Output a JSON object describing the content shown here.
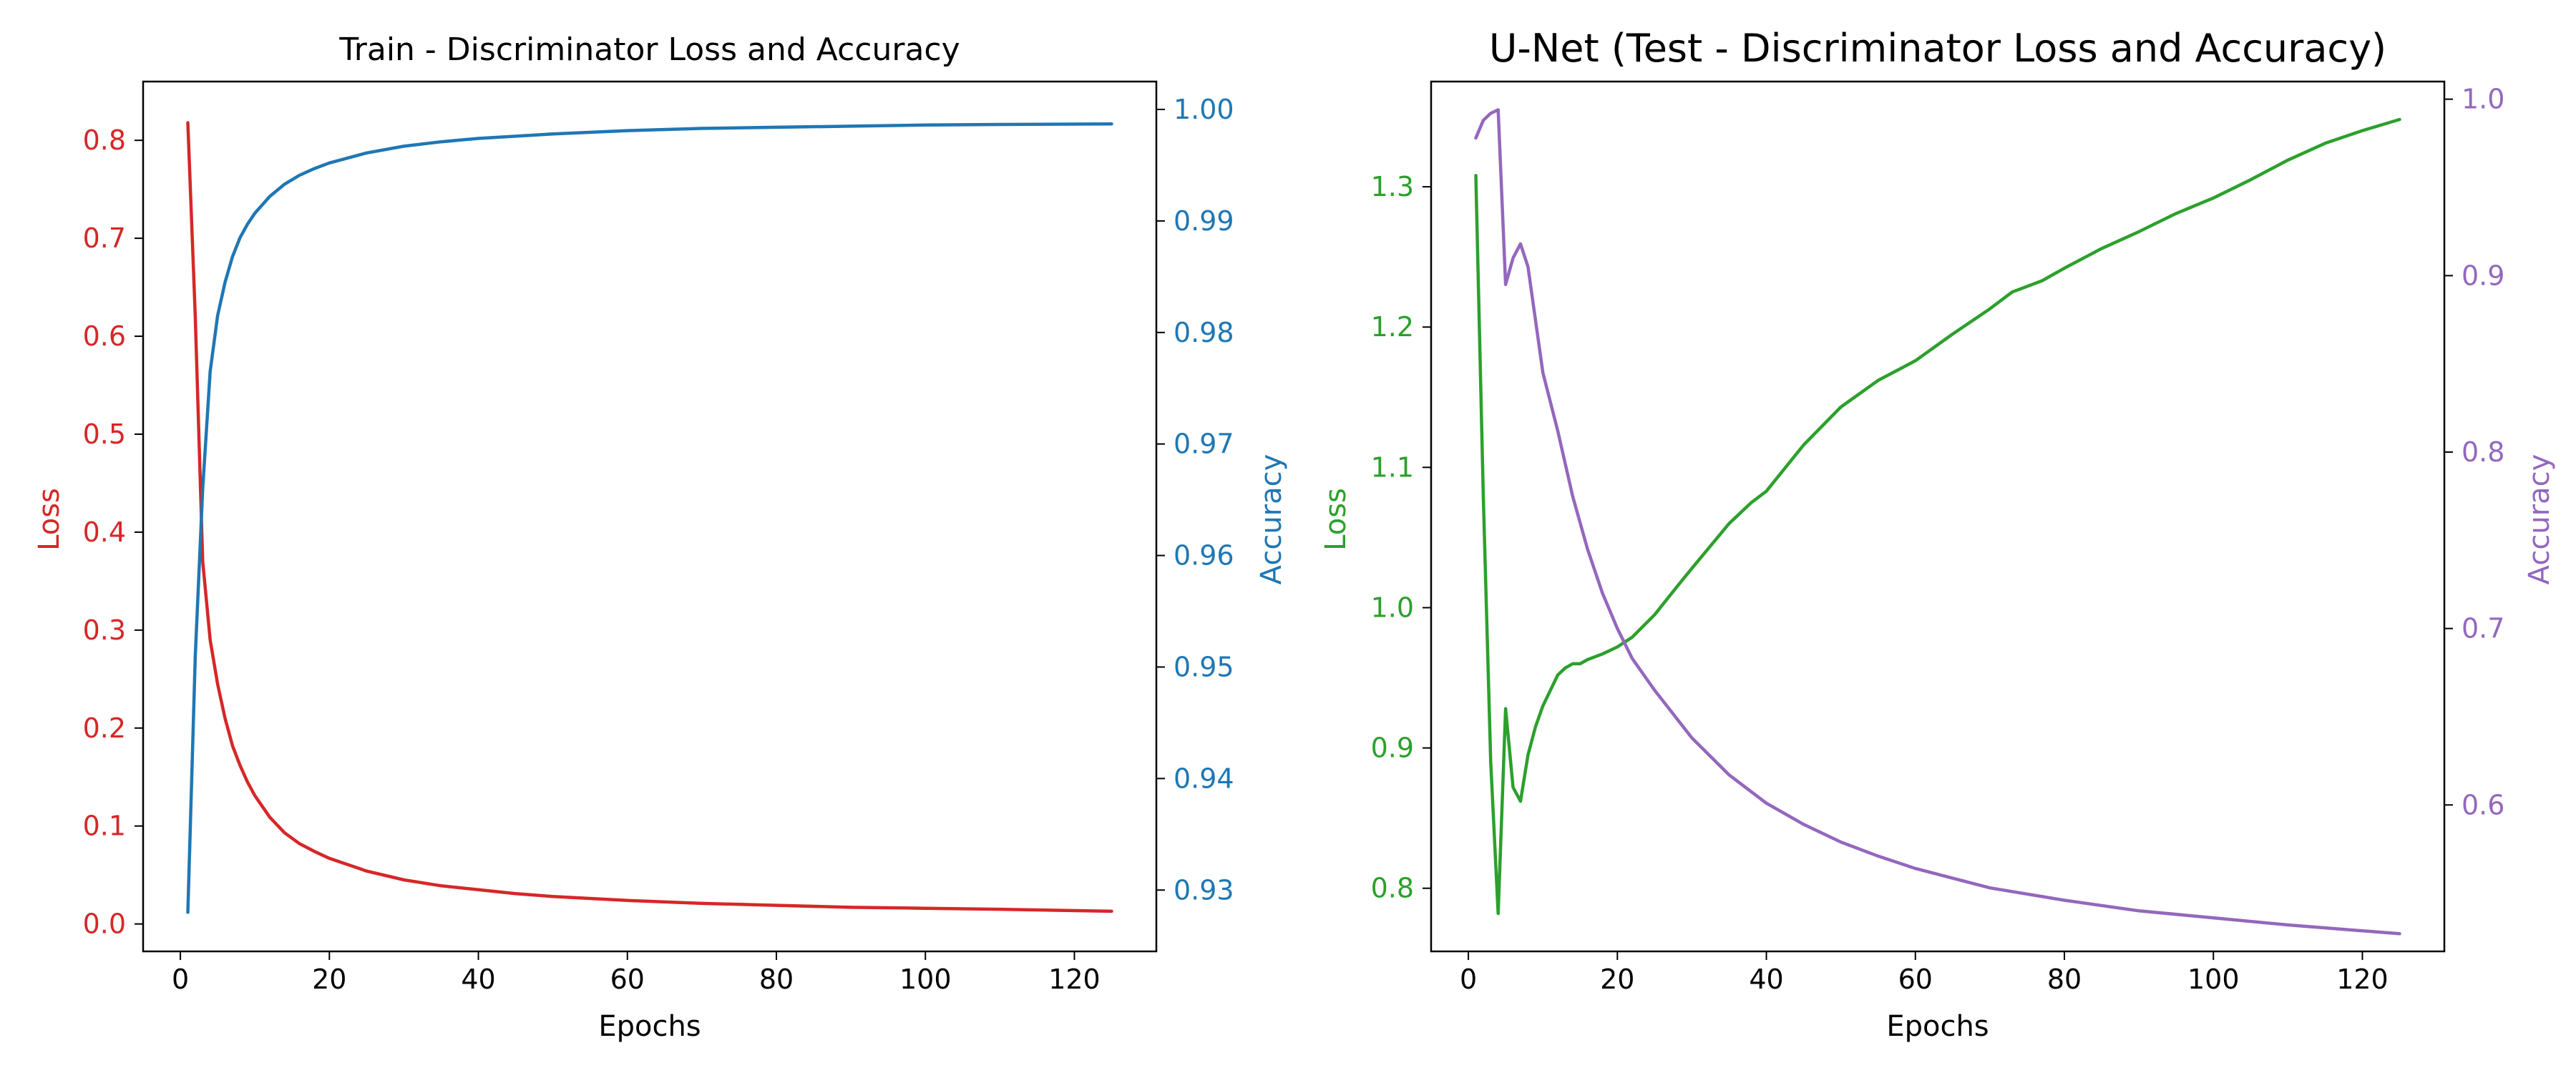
{
  "chart_data": [
    {
      "type": "line",
      "title": "Train - Discriminator Loss and Accuracy",
      "xlabel": "Epochs",
      "ylabel_left": "Loss",
      "ylabel_right": "Accuracy",
      "xlim": [
        -5,
        131
      ],
      "ylim_left": [
        -0.028,
        0.86
      ],
      "ylim_right": [
        0.9245,
        1.0025
      ],
      "xticks": [
        "0",
        "20",
        "40",
        "60",
        "80",
        "100",
        "120"
      ],
      "yticks_left": [
        "0.0",
        "0.1",
        "0.2",
        "0.3",
        "0.4",
        "0.5",
        "0.6",
        "0.7",
        "0.8"
      ],
      "yticks_right": [
        "0.93",
        "0.94",
        "0.95",
        "0.96",
        "0.97",
        "0.98",
        "0.99",
        "1.00"
      ],
      "left_color": "#d62728",
      "right_color": "#1f77b4",
      "grid": false,
      "series": [
        {
          "axis": "left",
          "color": "#d62728",
          "x": [
            1,
            2,
            3,
            4,
            5,
            6,
            7,
            8,
            9,
            10,
            12,
            14,
            16,
            18,
            20,
            25,
            30,
            35,
            40,
            45,
            50,
            60,
            70,
            80,
            90,
            100,
            110,
            125
          ],
          "y": [
            0.818,
            0.62,
            0.37,
            0.29,
            0.245,
            0.21,
            0.182,
            0.162,
            0.145,
            0.131,
            0.109,
            0.093,
            0.082,
            0.074,
            0.067,
            0.054,
            0.045,
            0.039,
            0.035,
            0.031,
            0.028,
            0.024,
            0.021,
            0.019,
            0.017,
            0.016,
            0.015,
            0.013
          ]
        },
        {
          "axis": "right",
          "color": "#1f77b4",
          "x": [
            1,
            2,
            3,
            4,
            5,
            6,
            7,
            8,
            9,
            10,
            12,
            14,
            16,
            18,
            20,
            25,
            30,
            35,
            40,
            50,
            60,
            70,
            80,
            90,
            100,
            110,
            125
          ],
          "y": [
            0.928,
            0.951,
            0.966,
            0.9765,
            0.9815,
            0.9845,
            0.9868,
            0.9885,
            0.9897,
            0.9907,
            0.9922,
            0.9933,
            0.9941,
            0.9947,
            0.9952,
            0.9961,
            0.9967,
            0.9971,
            0.9974,
            0.9978,
            0.9981,
            0.9983,
            0.9984,
            0.9985,
            0.9986,
            0.99865,
            0.9987
          ]
        }
      ]
    },
    {
      "type": "line",
      "title": "U-Net (Test - Discriminator Loss and Accuracy)",
      "xlabel": "Epochs",
      "ylabel_left": "Loss",
      "ylabel_right": "Accuracy",
      "xlim": [
        -5,
        131
      ],
      "ylim_left": [
        0.755,
        1.375
      ],
      "ylim_right": [
        0.517,
        1.01
      ],
      "xticks": [
        "0",
        "20",
        "40",
        "60",
        "80",
        "100",
        "120"
      ],
      "yticks_left": [
        "0.8",
        "0.9",
        "1.0",
        "1.1",
        "1.2",
        "1.3"
      ],
      "yticks_right": [
        "0.6",
        "0.7",
        "0.8",
        "0.9",
        "1.0"
      ],
      "left_color": "#2ca02c",
      "right_color": "#9467bd",
      "grid": false,
      "series": [
        {
          "axis": "left",
          "color": "#2ca02c",
          "x": [
            1,
            2,
            3,
            4,
            5,
            6,
            7,
            8,
            9,
            10,
            12,
            13,
            14,
            15,
            16,
            18,
            20,
            22,
            25,
            28,
            30,
            35,
            38,
            40,
            45,
            50,
            55,
            60,
            65,
            70,
            73,
            77,
            80,
            85,
            90,
            95,
            100,
            105,
            110,
            115,
            120,
            125
          ],
          "y": [
            1.308,
            1.08,
            0.89,
            0.782,
            0.928,
            0.872,
            0.862,
            0.895,
            0.915,
            0.93,
            0.952,
            0.957,
            0.96,
            0.96,
            0.963,
            0.967,
            0.972,
            0.979,
            0.995,
            1.015,
            1.028,
            1.06,
            1.075,
            1.083,
            1.116,
            1.143,
            1.162,
            1.176,
            1.195,
            1.213,
            1.225,
            1.233,
            1.242,
            1.256,
            1.268,
            1.281,
            1.292,
            1.305,
            1.319,
            1.331,
            1.34,
            1.348
          ]
        },
        {
          "axis": "right",
          "color": "#9467bd",
          "x": [
            1,
            2,
            3,
            4,
            5,
            6,
            7,
            8,
            9,
            10,
            12,
            14,
            16,
            18,
            20,
            22,
            25,
            30,
            35,
            40,
            45,
            50,
            55,
            60,
            70,
            80,
            90,
            100,
            110,
            125
          ],
          "y": [
            0.978,
            0.988,
            0.992,
            0.994,
            0.895,
            0.91,
            0.918,
            0.905,
            0.875,
            0.845,
            0.812,
            0.775,
            0.745,
            0.72,
            0.7,
            0.683,
            0.665,
            0.638,
            0.617,
            0.601,
            0.589,
            0.579,
            0.571,
            0.564,
            0.553,
            0.546,
            0.54,
            0.536,
            0.532,
            0.527
          ]
        }
      ]
    }
  ]
}
